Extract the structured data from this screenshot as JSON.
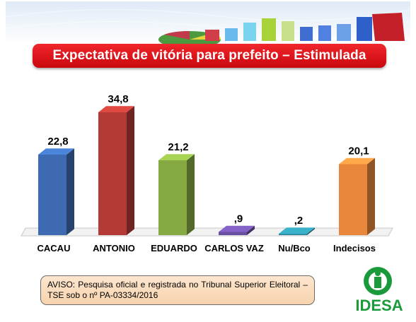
{
  "header": {
    "title": "Expectativa de vitória para prefeito – Estimulada"
  },
  "notice": {
    "text": "AVISO: Pesquisa oficial e registrada no Tribunal Superior Eleitoral – TSE sob o nº PA-03334/2016"
  },
  "logo": {
    "text": "IDESA",
    "color": "#1a9a3a"
  },
  "chart_data": {
    "type": "bar",
    "title": "Expectativa de vitória para prefeito – Estimulada",
    "categories": [
      "CACAU",
      "ANTONIO",
      "EDUARDO",
      "CARLOS VAZ",
      "Nu/Bco",
      "Indecisos"
    ],
    "values": [
      22.8,
      34.8,
      21.2,
      0.9,
      0.2,
      20.1
    ],
    "value_labels": [
      "22,8",
      "34,8",
      "21,2",
      ",9",
      ",2",
      "20,1"
    ],
    "colors": [
      "#3d6ab0",
      "#b33a35",
      "#86a944",
      "#6a4ea0",
      "#2f8ea3",
      "#e8873b"
    ],
    "ylim": [
      0,
      38
    ],
    "grid": false,
    "legend": "none"
  }
}
